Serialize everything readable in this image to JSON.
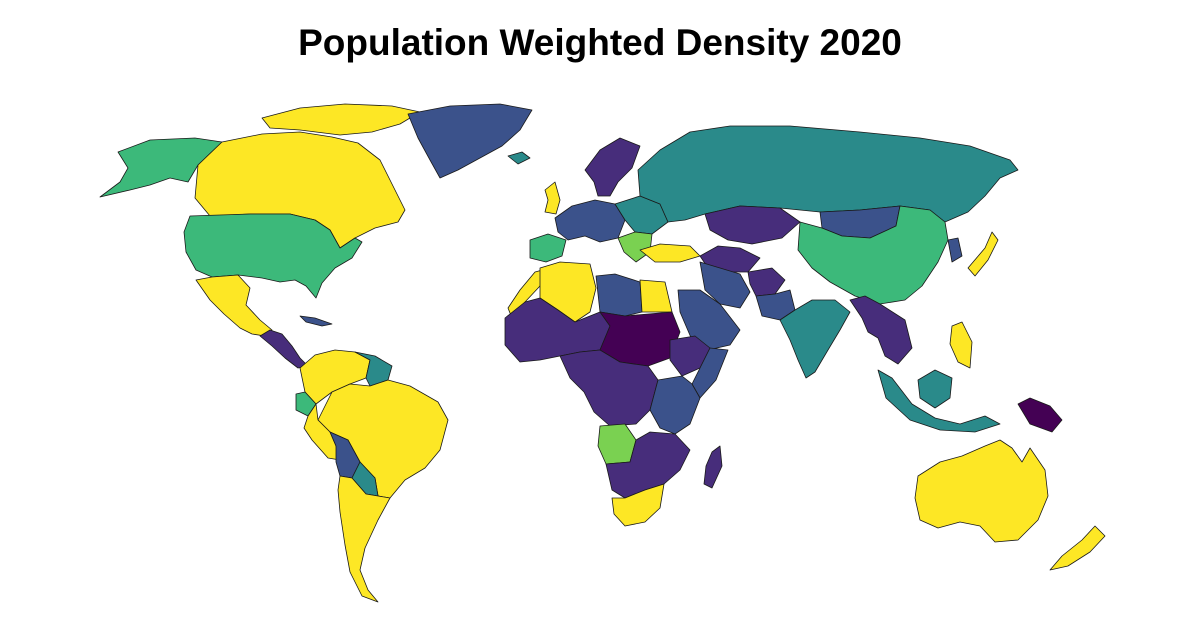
{
  "title": "Population Weighted Density 2020",
  "palette": {
    "yellow": "#fde725",
    "lime": "#7ad151",
    "green": "#3cb97a",
    "teal": "#2a8a8a",
    "blue": "#3b528b",
    "indigo": "#472d7b",
    "purple": "#440154"
  },
  "regions": [
    {
      "name": "canada",
      "fill": "yellow"
    },
    {
      "name": "alaska",
      "fill": "green"
    },
    {
      "name": "arctic-islands",
      "fill": "yellow"
    },
    {
      "name": "united-states",
      "fill": "green"
    },
    {
      "name": "mexico",
      "fill": "yellow"
    },
    {
      "name": "central-america",
      "fill": "indigo"
    },
    {
      "name": "cuba",
      "fill": "blue"
    },
    {
      "name": "greenland",
      "fill": "blue"
    },
    {
      "name": "iceland",
      "fill": "teal"
    },
    {
      "name": "colombia-venezuela",
      "fill": "yellow"
    },
    {
      "name": "guianas",
      "fill": "teal"
    },
    {
      "name": "ecuador",
      "fill": "green"
    },
    {
      "name": "brazil",
      "fill": "yellow"
    },
    {
      "name": "peru",
      "fill": "yellow"
    },
    {
      "name": "bolivia",
      "fill": "blue"
    },
    {
      "name": "paraguay",
      "fill": "teal"
    },
    {
      "name": "argentina-chile",
      "fill": "yellow"
    },
    {
      "name": "scandinavia",
      "fill": "indigo"
    },
    {
      "name": "united-kingdom",
      "fill": "yellow"
    },
    {
      "name": "western-europe",
      "fill": "blue"
    },
    {
      "name": "iberia",
      "fill": "green"
    },
    {
      "name": "eastern-europe",
      "fill": "teal"
    },
    {
      "name": "balkans",
      "fill": "lime"
    },
    {
      "name": "turkey",
      "fill": "yellow"
    },
    {
      "name": "russia",
      "fill": "teal"
    },
    {
      "name": "kazakhstan",
      "fill": "indigo"
    },
    {
      "name": "mongolia",
      "fill": "blue"
    },
    {
      "name": "china",
      "fill": "green"
    },
    {
      "name": "korea",
      "fill": "blue"
    },
    {
      "name": "japan",
      "fill": "yellow"
    },
    {
      "name": "central-asia",
      "fill": "indigo"
    },
    {
      "name": "iran",
      "fill": "blue"
    },
    {
      "name": "afghanistan",
      "fill": "indigo"
    },
    {
      "name": "pakistan",
      "fill": "blue"
    },
    {
      "name": "india",
      "fill": "teal"
    },
    {
      "name": "southeast-asia",
      "fill": "indigo"
    },
    {
      "name": "philippines",
      "fill": "yellow"
    },
    {
      "name": "indonesia",
      "fill": "teal"
    },
    {
      "name": "borneo",
      "fill": "teal"
    },
    {
      "name": "papua-new-guinea",
      "fill": "purple"
    },
    {
      "name": "australia",
      "fill": "yellow"
    },
    {
      "name": "new-zealand",
      "fill": "yellow"
    },
    {
      "name": "arabian-peninsula",
      "fill": "blue"
    },
    {
      "name": "morocco",
      "fill": "yellow"
    },
    {
      "name": "algeria",
      "fill": "yellow"
    },
    {
      "name": "libya",
      "fill": "blue"
    },
    {
      "name": "egypt",
      "fill": "yellow"
    },
    {
      "name": "sahel",
      "fill": "indigo"
    },
    {
      "name": "sudan-chad",
      "fill": "purple"
    },
    {
      "name": "horn-of-africa",
      "fill": "indigo"
    },
    {
      "name": "somalia",
      "fill": "blue"
    },
    {
      "name": "central-africa",
      "fill": "indigo"
    },
    {
      "name": "east-africa",
      "fill": "blue"
    },
    {
      "name": "angola",
      "fill": "lime"
    },
    {
      "name": "southern-africa",
      "fill": "indigo"
    },
    {
      "name": "south-africa",
      "fill": "yellow"
    },
    {
      "name": "madagascar",
      "fill": "indigo"
    }
  ]
}
